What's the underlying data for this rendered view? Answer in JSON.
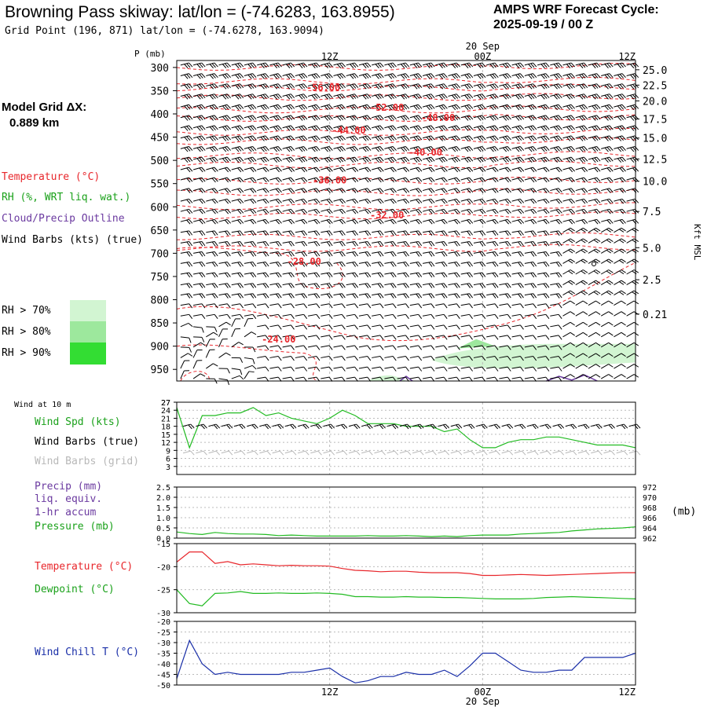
{
  "header": {
    "title": "Browning Pass skiway:  lat/lon = (-74.6283, 163.8955)",
    "subtitle": "Grid Point (196, 871) lat/lon = (-74.6278, 163.9094)",
    "cycle_label": "AMPS WRF Forecast Cycle:",
    "cycle_value": "2025-09-19 / 00  Z",
    "date_label": "20 Sep",
    "date_label_bottom": "20 Sep"
  },
  "left_panel": {
    "grid_label": "Model Grid ΔX:",
    "grid_value": "0.889 km",
    "legend_temperature": "Temperature (°C)",
    "legend_rh": "RH (%, WRT liq. wat.)",
    "legend_cloud": "Cloud/Precip Outline",
    "legend_wind": "Wind Barbs (kts) (true)",
    "rh_legend": [
      {
        "label": "RH > 70%",
        "color": "#d2f5d2"
      },
      {
        "label": "RH > 80%",
        "color": "#9de89d"
      },
      {
        "label": "RH > 90%",
        "color": "#33dd33"
      }
    ]
  },
  "colors": {
    "temperature": "#e8262b",
    "rh_green": "#22bb22",
    "cloud_outline": "#6b3aa0",
    "wind_chill": "#1a2fa8",
    "grid_wind": "#b8b8b8",
    "grid_line": "#bbbbbb"
  },
  "chart_data": [
    {
      "type": "heatmap",
      "name": "skewt-time-height",
      "ylabel": "P (mb)",
      "ylabel_right": "Kft MSL",
      "x_ticks": [
        "12Z",
        "00Z",
        "12Z"
      ],
      "x_tick_hours": [
        12,
        24,
        36
      ],
      "x_range_hours": [
        0,
        36
      ],
      "pressure_ticks": [
        300,
        350,
        400,
        450,
        500,
        550,
        600,
        650,
        700,
        750,
        800,
        850,
        900,
        950
      ],
      "pressure_range": [
        285,
        975
      ],
      "height_ticks": [
        {
          "label": "25.0",
          "p": 305
        },
        {
          "label": "22.5",
          "p": 338
        },
        {
          "label": "20.0",
          "p": 372
        },
        {
          "label": "17.5",
          "p": 411
        },
        {
          "label": "15.0",
          "p": 452
        },
        {
          "label": "12.5",
          "p": 497
        },
        {
          "label": "10.0",
          "p": 545
        },
        {
          "label": "7.5",
          "p": 610
        },
        {
          "label": "5.0",
          "p": 688
        },
        {
          "label": "2.5",
          "p": 757
        },
        {
          "label": "0.21",
          "p": 831
        }
      ],
      "temperature_contour_labels": [
        {
          "label": "-56.00",
          "hour": 11.5,
          "p": 350
        },
        {
          "label": "-52.00",
          "hour": 16.5,
          "p": 393
        },
        {
          "label": "-48.00",
          "hour": 20.5,
          "p": 415
        },
        {
          "label": "-44.00",
          "hour": 13.5,
          "p": 442
        },
        {
          "label": "-40.00",
          "hour": 19.5,
          "p": 490
        },
        {
          "label": "-36.00",
          "hour": 12.0,
          "p": 550
        },
        {
          "label": "-32.00",
          "hour": 16.5,
          "p": 625
        },
        {
          "label": "-28.00",
          "hour": 10.0,
          "p": 725
        },
        {
          "label": "-24.00",
          "hour": 8.0,
          "p": 892
        }
      ],
      "grid": true
    },
    {
      "type": "line",
      "name": "wind-10m",
      "title": "Wind at 10 m",
      "legend": [
        "Wind Spd (kts)",
        "Wind Barbs (true)",
        "Wind Barbs (grid)"
      ],
      "y_ticks": [
        3,
        6,
        9,
        12,
        15,
        18,
        21,
        24,
        27
      ],
      "ylim": [
        0,
        27
      ],
      "series": [
        {
          "name": "Wind Spd (kts)",
          "x": [
            0,
            1,
            2,
            3,
            4,
            5,
            6,
            7,
            8,
            9,
            10,
            11,
            12,
            13,
            14,
            15,
            16,
            17,
            18,
            19,
            20,
            21,
            22,
            23,
            24,
            25,
            26,
            27,
            28,
            29,
            30,
            31,
            32,
            33,
            34,
            35,
            36
          ],
          "values": [
            25,
            10,
            22,
            22,
            23,
            23,
            25,
            22,
            23,
            21,
            20,
            19,
            21,
            24,
            22,
            19,
            19,
            19,
            18,
            18,
            18,
            16,
            17,
            13,
            10,
            10,
            12,
            13,
            13,
            14,
            14,
            13,
            12,
            11,
            11,
            11,
            10
          ]
        }
      ],
      "grid": true
    },
    {
      "type": "line",
      "name": "precip-pressure",
      "legend": [
        "Precip (mm)",
        "liq. equiv.",
        "1-hr accum",
        "Pressure (mb)"
      ],
      "y_ticks": [
        0,
        0.5,
        1.0,
        1.5,
        2.0,
        2.5
      ],
      "y_ticks_right": [
        962,
        964,
        966,
        968,
        970,
        972
      ],
      "ylim": [
        0,
        2.5
      ],
      "ylabel_right": "(mb)",
      "series": [
        {
          "name": "Pressure (mb)",
          "x": [
            0,
            1,
            2,
            3,
            4,
            5,
            6,
            7,
            8,
            9,
            10,
            11,
            12,
            13,
            14,
            15,
            16,
            17,
            18,
            19,
            20,
            21,
            22,
            23,
            24,
            25,
            26,
            27,
            28,
            29,
            30,
            31,
            32,
            33,
            34,
            35,
            36
          ],
          "values": [
            963.2,
            962.9,
            962.7,
            963.1,
            962.9,
            962.8,
            962.8,
            962.7,
            962.5,
            962.6,
            962.5,
            962.4,
            962.4,
            962.4,
            962.4,
            962.5,
            962.4,
            962.4,
            962.5,
            962.4,
            962.3,
            962.4,
            962.3,
            962.5,
            962.6,
            962.6,
            962.6,
            962.8,
            962.9,
            963.0,
            963.1,
            963.4,
            963.6,
            963.8,
            963.9,
            964.0,
            964.2
          ]
        }
      ],
      "grid": true
    },
    {
      "type": "line",
      "name": "temperature-dewpoint",
      "legend": [
        "Temperature (°C)",
        "Dewpoint (°C)"
      ],
      "y_ticks": [
        -15,
        -20,
        -25,
        -30
      ],
      "ylim": [
        -30,
        -15
      ],
      "series": [
        {
          "name": "Temperature (°C)",
          "x": [
            0,
            1,
            2,
            3,
            4,
            5,
            6,
            7,
            8,
            9,
            10,
            11,
            12,
            13,
            14,
            15,
            16,
            17,
            18,
            19,
            20,
            21,
            22,
            23,
            24,
            25,
            26,
            27,
            28,
            29,
            30,
            31,
            32,
            33,
            34,
            35,
            36
          ],
          "values": [
            -19.0,
            -16.8,
            -16.8,
            -19.3,
            -18.9,
            -19.6,
            -19.4,
            -19.6,
            -19.8,
            -19.7,
            -19.8,
            -19.8,
            -19.9,
            -20.4,
            -20.8,
            -20.9,
            -21.1,
            -21.0,
            -21.0,
            -21.2,
            -21.3,
            -21.3,
            -21.3,
            -21.5,
            -21.9,
            -21.9,
            -21.8,
            -21.7,
            -21.8,
            -21.9,
            -21.8,
            -21.7,
            -21.6,
            -21.5,
            -21.4,
            -21.3,
            -21.3
          ]
        },
        {
          "name": "Dewpoint (°C)",
          "x": [
            0,
            1,
            2,
            3,
            4,
            5,
            6,
            7,
            8,
            9,
            10,
            11,
            12,
            13,
            14,
            15,
            16,
            17,
            18,
            19,
            20,
            21,
            22,
            23,
            24,
            25,
            26,
            27,
            28,
            29,
            30,
            31,
            32,
            33,
            34,
            35,
            36
          ],
          "values": [
            -25.0,
            -28.0,
            -28.5,
            -25.8,
            -25.7,
            -25.4,
            -25.8,
            -25.8,
            -25.7,
            -25.8,
            -25.8,
            -25.7,
            -25.8,
            -26.0,
            -26.5,
            -26.5,
            -26.6,
            -26.6,
            -26.5,
            -26.6,
            -26.6,
            -26.7,
            -26.7,
            -26.8,
            -26.9,
            -27.0,
            -27.0,
            -27.0,
            -26.9,
            -26.7,
            -26.6,
            -26.5,
            -26.6,
            -26.7,
            -26.8,
            -26.9,
            -27.0
          ]
        }
      ],
      "grid": true
    },
    {
      "type": "line",
      "name": "wind-chill",
      "legend": [
        "Wind Chill T (°C)"
      ],
      "y_ticks": [
        -20,
        -25,
        -30,
        -35,
        -40,
        -45,
        -50
      ],
      "ylim": [
        -50,
        -20
      ],
      "series": [
        {
          "name": "Wind Chill T (°C)",
          "x": [
            0,
            1,
            2,
            3,
            4,
            5,
            6,
            7,
            8,
            9,
            10,
            11,
            12,
            13,
            14,
            15,
            16,
            17,
            18,
            19,
            20,
            21,
            22,
            23,
            24,
            25,
            26,
            27,
            28,
            29,
            30,
            31,
            32,
            33,
            34,
            35,
            36
          ],
          "values": [
            -47,
            -29,
            -40,
            -45,
            -44,
            -45,
            -45,
            -45,
            -45,
            -44,
            -44,
            -43,
            -42,
            -46,
            -49,
            -48,
            -46,
            -46,
            -44,
            -45,
            -45,
            -43,
            -46,
            -41,
            -35,
            -35,
            -39,
            -43,
            -44,
            -44,
            -43,
            -43,
            -37,
            -37,
            -37,
            -37,
            -35
          ]
        }
      ],
      "x_ticks": [
        "12Z",
        "00Z",
        "12Z"
      ],
      "grid": true
    }
  ],
  "lower_labels": {
    "wind_title": "Wind at 10 m",
    "wind_spd": "Wind Spd (kts)",
    "wind_barbs_true": "Wind Barbs (true)",
    "wind_barbs_grid": "Wind Barbs (grid)",
    "precip_1": "Precip (mm)",
    "precip_2": "liq. equiv.",
    "precip_3": "1-hr accum",
    "pressure": "Pressure (mb)",
    "pressure_unit": "(mb)",
    "temperature": "Temperature (°C)",
    "dewpoint": "Dewpoint (°C)",
    "wind_chill": "Wind Chill T (°C)"
  }
}
